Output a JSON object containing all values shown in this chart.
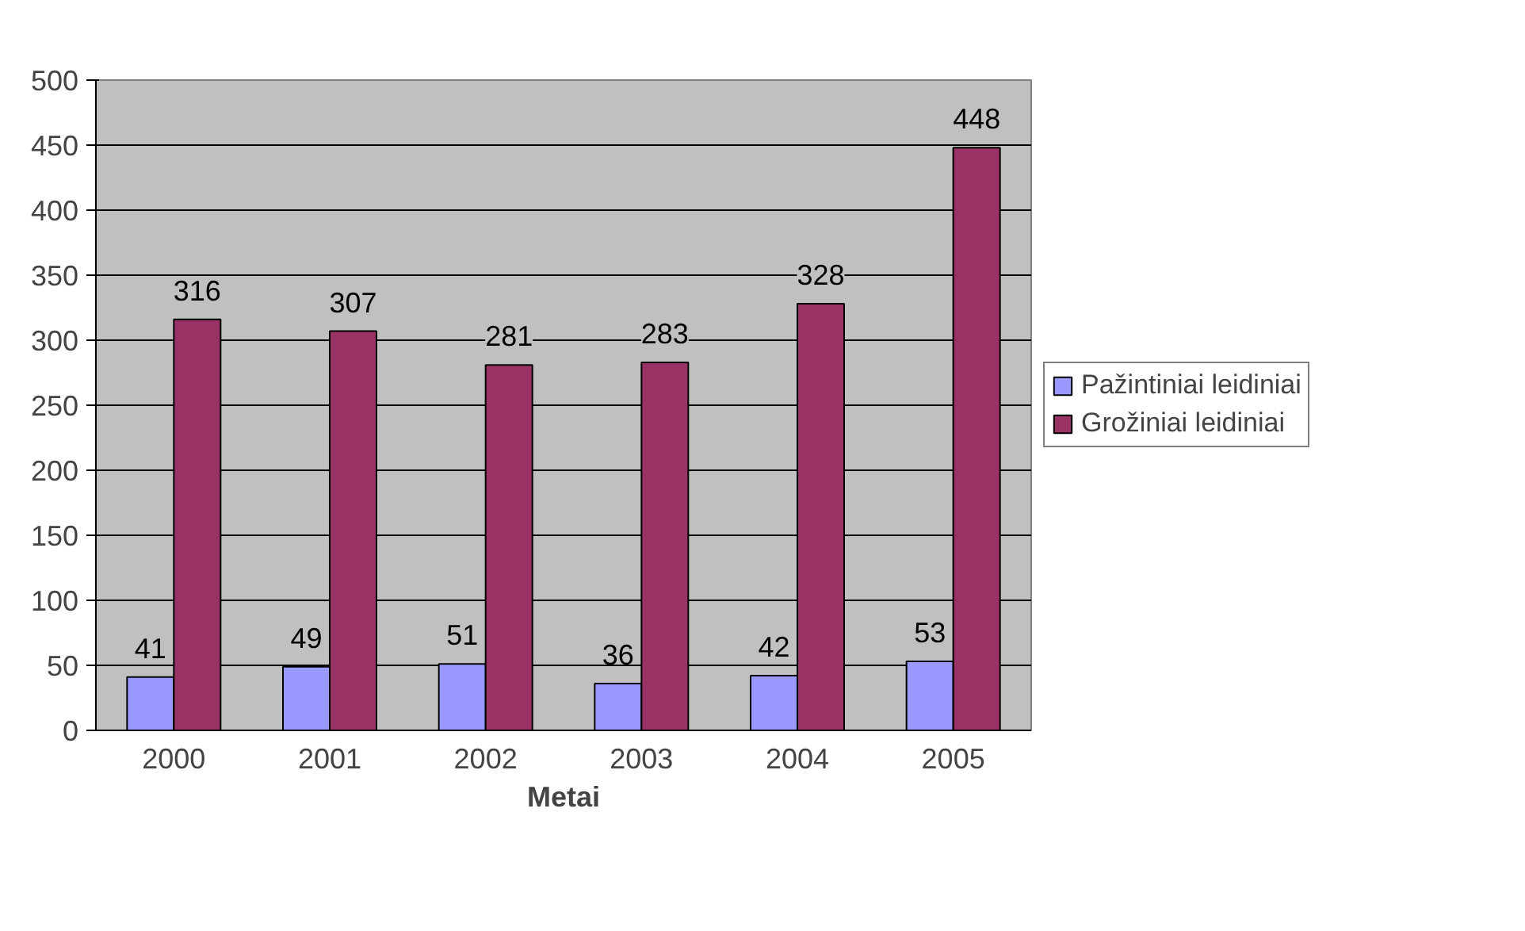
{
  "chart_data": {
    "type": "bar",
    "xlabel": "Metai",
    "categories": [
      "2000",
      "2001",
      "2002",
      "2003",
      "2004",
      "2005"
    ],
    "series": [
      {
        "name": "Pažintiniai leidiniai",
        "color": "#9999ff",
        "values": [
          41,
          49,
          51,
          36,
          42,
          53
        ]
      },
      {
        "name": "Grožiniai leidiniai",
        "color": "#993366",
        "values": [
          316,
          307,
          281,
          283,
          328,
          448
        ]
      }
    ],
    "ylim": [
      0,
      500
    ],
    "yticks": [
      0,
      50,
      100,
      150,
      200,
      250,
      300,
      350,
      400,
      450,
      500
    ],
    "grid": "y",
    "legend": "right",
    "data_labels": true
  }
}
